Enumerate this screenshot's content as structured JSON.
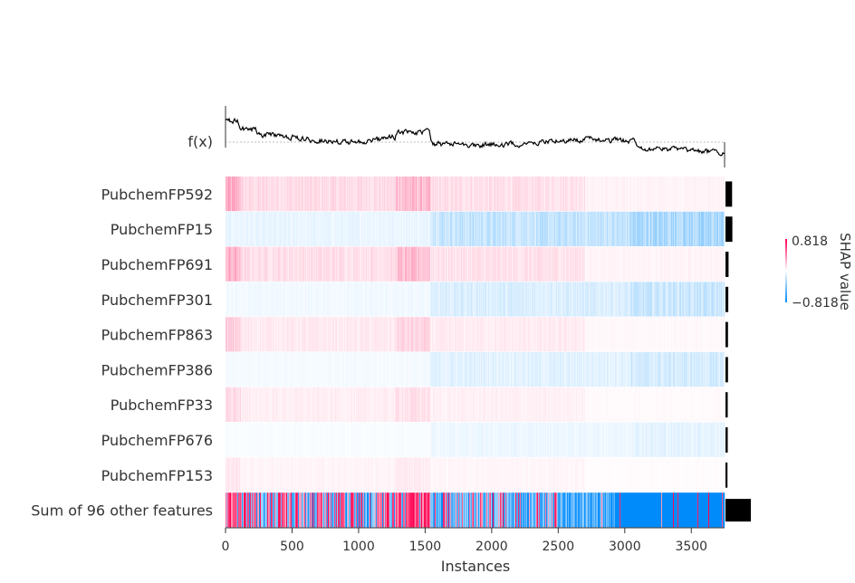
{
  "chart_data": {
    "type": "heatmap",
    "title": "",
    "xlabel": "Instances",
    "ylabel": "",
    "fx_label": "f(x)",
    "xlim": [
      0,
      3750
    ],
    "n_instances": 3750,
    "x_ticks": [
      0,
      500,
      1000,
      1500,
      2000,
      2500,
      3000,
      3500
    ],
    "features": [
      "PubchemFP592",
      "PubchemFP15",
      "PubchemFP691",
      "PubchemFP301",
      "PubchemFP863",
      "PubchemFP386",
      "PubchemFP33",
      "PubchemFP676",
      "PubchemFP153",
      "Sum of 96 other features"
    ],
    "row_strength": [
      0.3,
      0.32,
      0.28,
      0.2,
      0.18,
      0.16,
      0.14,
      0.1,
      0.09,
      1.0
    ],
    "row_sign": [
      1,
      -1,
      1,
      -1,
      1,
      -1,
      1,
      -1,
      1,
      0
    ],
    "importance": [
      0.26,
      0.27,
      0.12,
      0.11,
      0.1,
      0.1,
      0.09,
      0.09,
      0.08,
      1.0
    ],
    "colorbar": {
      "label": "SHAP value",
      "max_label": "0.818",
      "min_label": "−0.818",
      "vmin": -0.818,
      "vmax": 0.818
    },
    "colors": {
      "positive": "#ff0051",
      "negative": "#008bfb",
      "line": "#000000"
    },
    "grid": false,
    "legend": "none"
  }
}
